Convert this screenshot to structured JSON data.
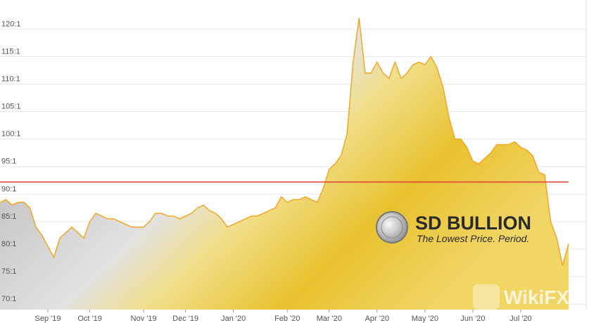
{
  "chart_data": {
    "type": "area",
    "categories": [
      null,
      null,
      null,
      null,
      null,
      null,
      null,
      null,
      "Sep '19",
      null,
      null,
      null,
      null,
      null,
      null,
      "Oct '19",
      null,
      null,
      null,
      null,
      null,
      null,
      null,
      null,
      "Nov '19",
      null,
      null,
      null,
      null,
      null,
      null,
      "Dec '19",
      null,
      null,
      null,
      null,
      null,
      null,
      null,
      "Jan '20",
      null,
      null,
      null,
      null,
      null,
      null,
      null,
      null,
      "Feb '20",
      null,
      null,
      null,
      null,
      null,
      null,
      "Mar '20",
      null,
      null,
      null,
      null,
      null,
      null,
      null,
      "Apr '20",
      null,
      null,
      null,
      null,
      null,
      null,
      null,
      "May '20",
      null,
      null,
      null,
      null,
      null,
      null,
      null,
      "Jun '20",
      null,
      null,
      null,
      null,
      null,
      null,
      null,
      "Jul '20",
      null,
      null,
      null,
      null,
      null,
      null,
      null,
      null
    ],
    "values": [
      88.5,
      89,
      88,
      88.5,
      88.5,
      87.5,
      84,
      82.5,
      80.5,
      78.5,
      82,
      83,
      84,
      83,
      82,
      85,
      86.5,
      86,
      85.5,
      85.5,
      85,
      84.5,
      84,
      84,
      84,
      85,
      86.5,
      86.5,
      86,
      86,
      85.5,
      86,
      86.5,
      87.5,
      88,
      87,
      86.5,
      85.5,
      84,
      84.5,
      85,
      85.5,
      86,
      86,
      86.5,
      87,
      87.5,
      89.5,
      88.5,
      89,
      89,
      89.5,
      89,
      88.5,
      91,
      94.5,
      95.5,
      97,
      101,
      114,
      122,
      112,
      112,
      114,
      112,
      111,
      114,
      111,
      112,
      113.5,
      114,
      113.5,
      115,
      113,
      109.5,
      104,
      100,
      100,
      98.5,
      96,
      95.5,
      96.5,
      97.5,
      99,
      99,
      99,
      99.5,
      98.5,
      98,
      97,
      94,
      93.5,
      85,
      82,
      77,
      81
    ],
    "color": "#f5a623",
    "ylim": [
      69,
      124
    ],
    "yticks": [
      {
        "value": 70,
        "label": "70:1"
      },
      {
        "value": 75,
        "label": "75:1"
      },
      {
        "value": 80,
        "label": "80:1"
      },
      {
        "value": 85,
        "label": "85:1"
      },
      {
        "value": 90,
        "label": "90:1"
      },
      {
        "value": 95,
        "label": "95:1"
      },
      {
        "value": 100,
        "label": "100:1"
      },
      {
        "value": 105,
        "label": "105:1"
      },
      {
        "value": 110,
        "label": "110:1"
      },
      {
        "value": 115,
        "label": "115:1"
      },
      {
        "value": 120,
        "label": "120:1"
      }
    ],
    "grid": true,
    "reference_line": {
      "value": 92.2,
      "color": "#e53935"
    }
  },
  "watermarks": {
    "brand": "SD BULLION",
    "tagline": "The Lowest Price. Period.",
    "wikifx": "WikiFX"
  }
}
